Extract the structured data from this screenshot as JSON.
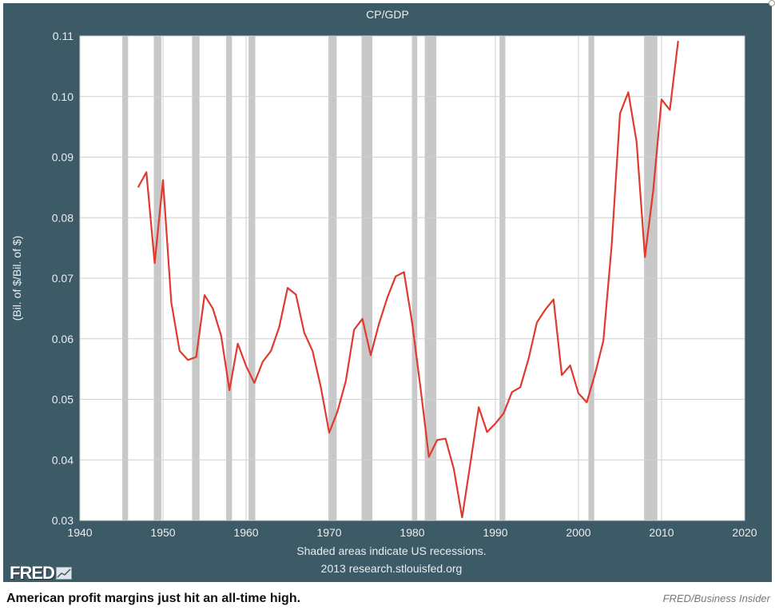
{
  "chart_data": {
    "type": "line",
    "title": "CP/GDP",
    "ylabel": "(Bil. of $/Bil. of $)",
    "xlim": [
      1940,
      2020
    ],
    "ylim": [
      0.03,
      0.11
    ],
    "x_ticks": [
      "1940",
      "1950",
      "1960",
      "1970",
      "1980",
      "1990",
      "2000",
      "2010",
      "2020"
    ],
    "y_ticks": [
      "0.03",
      "0.04",
      "0.05",
      "0.06",
      "0.07",
      "0.08",
      "0.09",
      "0.10",
      "0.11"
    ],
    "grid": true,
    "series": [
      {
        "color": "#e03a2f",
        "x": [
          1947,
          1948,
          1949,
          1950,
          1951,
          1952,
          1953,
          1954,
          1955,
          1956,
          1957,
          1958,
          1959,
          1960,
          1961,
          1962,
          1963,
          1964,
          1965,
          1966,
          1967,
          1968,
          1969,
          1970,
          1971,
          1972,
          1973,
          1974,
          1975,
          1976,
          1977,
          1978,
          1979,
          1980,
          1981,
          1982,
          1983,
          1984,
          1985,
          1986,
          1987,
          1988,
          1989,
          1990,
          1991,
          1992,
          1993,
          1994,
          1995,
          1996,
          1997,
          1998,
          1999,
          2000,
          2001,
          2002,
          2003,
          2004,
          2005,
          2006,
          2007,
          2008,
          2009,
          2010,
          2011,
          2012
        ],
        "y": [
          0.085,
          0.0875,
          0.0725,
          0.0862,
          0.066,
          0.058,
          0.0565,
          0.057,
          0.0672,
          0.065,
          0.0605,
          0.0515,
          0.0592,
          0.0555,
          0.0527,
          0.0562,
          0.058,
          0.062,
          0.0684,
          0.0673,
          0.061,
          0.058,
          0.052,
          0.0445,
          0.048,
          0.053,
          0.0615,
          0.0633,
          0.0573,
          0.0625,
          0.0668,
          0.0703,
          0.071,
          0.0625,
          0.0518,
          0.0405,
          0.0433,
          0.0435,
          0.0385,
          0.0305,
          0.0395,
          0.0487,
          0.0446,
          0.046,
          0.0477,
          0.0512,
          0.052,
          0.0567,
          0.0627,
          0.0648,
          0.0665,
          0.054,
          0.0556,
          0.051,
          0.0495,
          0.0542,
          0.0597,
          0.0755,
          0.0972,
          0.1007,
          0.0925,
          0.0735,
          0.0845,
          0.0995,
          0.0978,
          0.1092
        ]
      }
    ],
    "recessions": [
      [
        1945.1,
        1945.8
      ],
      [
        1948.9,
        1949.8
      ],
      [
        1953.5,
        1954.4
      ],
      [
        1957.6,
        1958.3
      ],
      [
        1960.3,
        1961.1
      ],
      [
        1969.9,
        1970.9
      ],
      [
        1973.9,
        1975.2
      ],
      [
        1980.0,
        1980.6
      ],
      [
        1981.5,
        1982.9
      ],
      [
        1990.5,
        1991.2
      ],
      [
        2001.2,
        2001.9
      ],
      [
        2007.9,
        2009.5
      ]
    ],
    "recession_color": "#c8c8c8",
    "notes": [
      "Shaded areas indicate US recessions.",
      "2013 research.stlouisfed.org"
    ]
  },
  "logo": {
    "text": "FRED"
  },
  "caption": {
    "headline": "American profit margins just hit an all-time high.",
    "credit": "FRED/Business Insider"
  }
}
